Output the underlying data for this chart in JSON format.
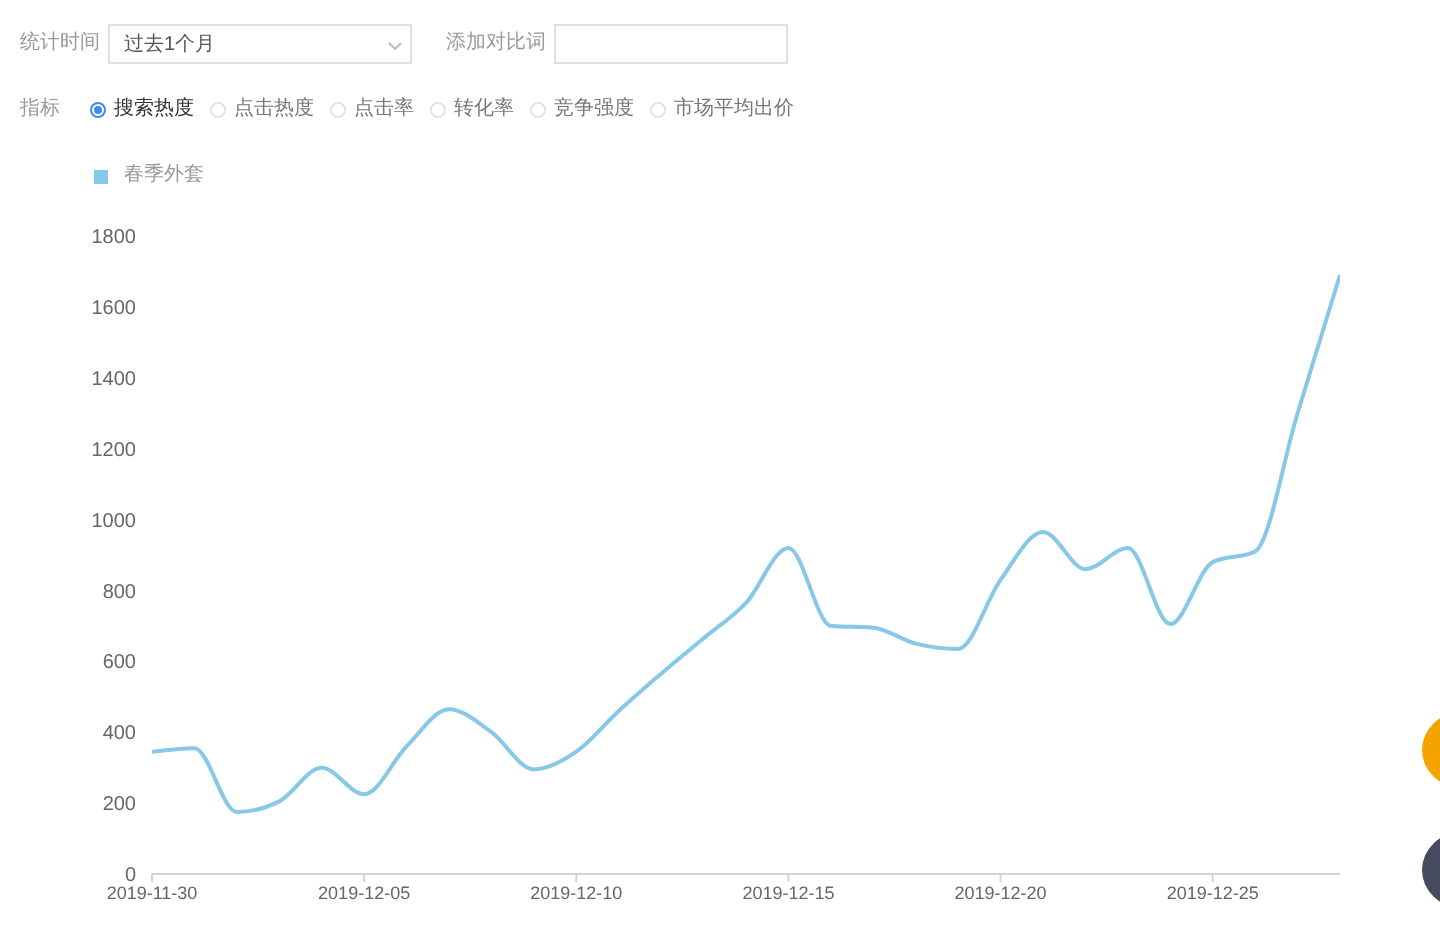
{
  "chart_data": {
    "type": "line",
    "annotations": [
      "统计时间",
      "过去1个月",
      "添加对比词",
      "指标",
      "搜索热度",
      "点击热度",
      "点击率",
      "转化率",
      "竞争强度",
      "市场平均出价"
    ],
    "x": [
      "2019-11-30",
      "2019-12-01",
      "2019-12-02",
      "2019-12-03",
      "2019-12-04",
      "2019-12-05",
      "2019-12-06",
      "2019-12-07",
      "2019-12-08",
      "2019-12-09",
      "2019-12-10",
      "2019-12-11",
      "2019-12-12",
      "2019-12-13",
      "2019-12-14",
      "2019-12-15",
      "2019-12-16",
      "2019-12-17",
      "2019-12-18",
      "2019-12-19",
      "2019-12-20",
      "2019-12-21",
      "2019-12-22",
      "2019-12-23",
      "2019-12-24",
      "2019-12-25",
      "2019-12-26",
      "2019-12-27",
      "2019-12-28"
    ],
    "series": [
      {
        "name": "春季外套",
        "color": "#87c7e8",
        "values": [
          345,
          355,
          175,
          205,
          300,
          225,
          360,
          465,
          400,
          295,
          345,
          460,
          565,
          665,
          765,
          920,
          700,
          695,
          650,
          635,
          830,
          965,
          860,
          920,
          705,
          880,
          910,
          1300,
          1690
        ]
      }
    ],
    "xlim": [
      "2019-11-30",
      "2019-12-28"
    ],
    "xticks": [
      "2019-11-30",
      "2019-12-05",
      "2019-12-10",
      "2019-12-15",
      "2019-12-20",
      "2019-12-25"
    ],
    "ylim": [
      0,
      1800
    ],
    "yticks": [
      0,
      200,
      400,
      600,
      800,
      1000,
      1200,
      1400,
      1600,
      1800
    ],
    "legend": "top left",
    "marker": "none",
    "line_style": "solid"
  }
}
